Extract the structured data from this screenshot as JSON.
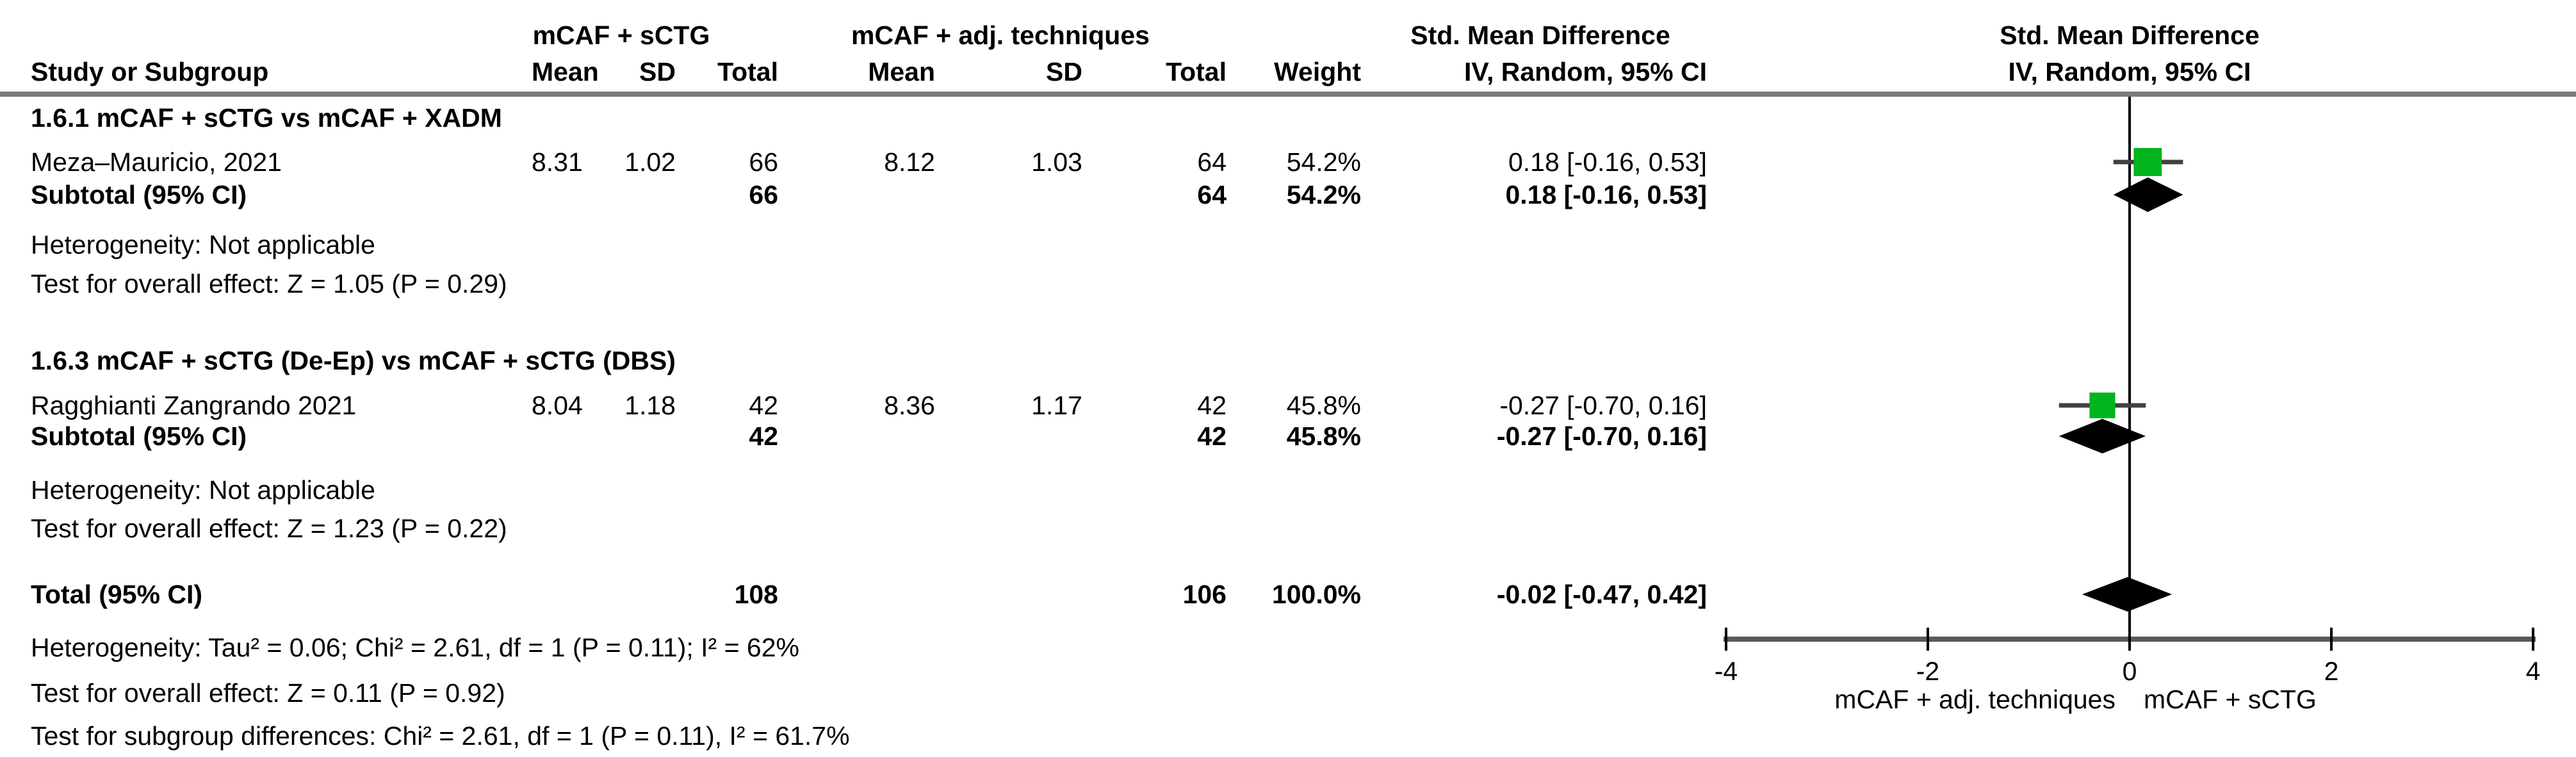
{
  "header": {
    "col_study": "Study or Subgroup",
    "group1": "mCAF + sCTG",
    "group2": "mCAF + adj. techniques",
    "col_mean": "Mean",
    "col_sd": "SD",
    "col_total": "Total",
    "col_weight": "Weight",
    "effect_header": "Std. Mean Difference",
    "effect_subheader": "IV, Random, 95% CI",
    "plot_header": "Std. Mean Difference",
    "plot_subheader": "IV, Random, 95% CI"
  },
  "subgroups": [
    {
      "title": "1.6.1 mCAF + sCTG vs mCAF + XADM",
      "studies": [
        {
          "name": "Meza–Mauricio, 2021",
          "mean1": "8.31",
          "sd1": "1.02",
          "total1": "66",
          "mean2": "8.12",
          "sd2": "1.03",
          "total2": "64",
          "weight": "54.2%",
          "ci": "0.18 [-0.16, 0.53]"
        }
      ],
      "subtotal": {
        "label": "Subtotal (95% CI)",
        "total1": "66",
        "total2": "64",
        "weight": "54.2%",
        "ci": "0.18 [-0.16, 0.53]"
      },
      "heterogeneity": "Heterogeneity: Not applicable",
      "overall_effect": "Test for overall effect: Z = 1.05 (P = 0.29)"
    },
    {
      "title": "1.6.3 mCAF + sCTG (De-Ep) vs mCAF + sCTG (DBS)",
      "studies": [
        {
          "name": "Ragghianti Zangrando 2021",
          "mean1": "8.04",
          "sd1": "1.18",
          "total1": "42",
          "mean2": "8.36",
          "sd2": "1.17",
          "total2": "42",
          "weight": "45.8%",
          "ci": "-0.27 [-0.70, 0.16]"
        }
      ],
      "subtotal": {
        "label": "Subtotal (95% CI)",
        "total1": "42",
        "total2": "42",
        "weight": "45.8%",
        "ci": "-0.27 [-0.70, 0.16]"
      },
      "heterogeneity": "Heterogeneity: Not applicable",
      "overall_effect": "Test for overall effect: Z = 1.23 (P = 0.22)"
    }
  ],
  "total": {
    "label": "Total (95% CI)",
    "total1": "108",
    "total2": "106",
    "weight": "100.0%",
    "ci": "-0.02 [-0.47, 0.42]",
    "heterogeneity": "Heterogeneity: Tau² = 0.06; Chi² = 2.61, df = 1 (P = 0.11); I² = 62%",
    "overall_effect": "Test for overall effect: Z = 0.11 (P = 0.92)",
    "subgroup_diff": "Test for subgroup differences: Chi² = 2.61, df = 1 (P = 0.11), I² = 61.7%"
  },
  "chart_data": {
    "type": "forest",
    "title": "Std. Mean Difference, IV, Random, 95% CI",
    "axis": {
      "min": -4,
      "max": 4,
      "ticks": [
        -4,
        -2,
        0,
        2,
        4
      ],
      "left_label": "mCAF + adj. techniques",
      "right_label": "mCAF + sCTG"
    },
    "points": [
      {
        "kind": "square",
        "label": "Meza–Mauricio, 2021",
        "est": 0.18,
        "lo": -0.16,
        "hi": 0.53,
        "weight": 54.2
      },
      {
        "kind": "diamond",
        "label": "Subtotal 1.6.1",
        "est": 0.18,
        "lo": -0.16,
        "hi": 0.53
      },
      {
        "kind": "square",
        "label": "Ragghianti Zangrando 2021",
        "est": -0.27,
        "lo": -0.7,
        "hi": 0.16,
        "weight": 45.8
      },
      {
        "kind": "diamond",
        "label": "Subtotal 1.6.3",
        "est": -0.27,
        "lo": -0.7,
        "hi": 0.16
      },
      {
        "kind": "diamond",
        "label": "Total",
        "est": -0.02,
        "lo": -0.47,
        "hi": 0.42
      }
    ],
    "colors": {
      "square": "#00b41e",
      "diamond": "#000000",
      "axis": "#595959",
      "ci": "#404040",
      "rule": "#7a7a7a"
    }
  }
}
